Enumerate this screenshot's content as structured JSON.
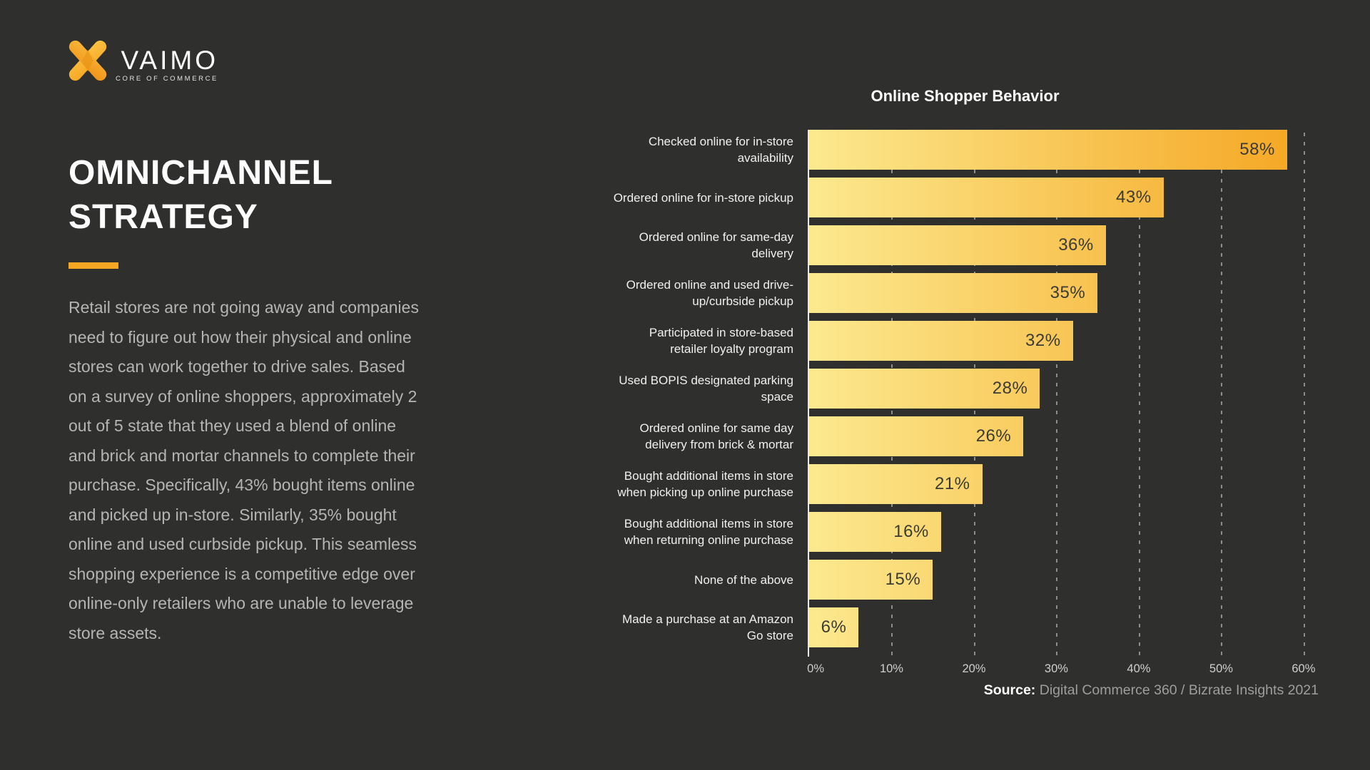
{
  "slide": {
    "background": "#2F2F2D",
    "accent_color": "#F5A623"
  },
  "logo": {
    "brand": "VAIMO",
    "tagline": "CORE OF COMMERCE"
  },
  "left_panel": {
    "heading": "OMNICHANNEL STRATEGY",
    "body": "Retail stores are not going away and companies need to figure out how their physical and online stores can work together to drive sales.  Based on a survey of online shoppers, approximately 2 out of 5 state that they used a blend of online and brick and mortar channels to complete their purchase. Specifically, 43% bought items online and picked up in-store. Similarly, 35% bought online and used curbside pickup. This seamless shopping experience is a competitive edge over online-only retailers who are unable to leverage store assets."
  },
  "chart_data": {
    "type": "bar",
    "orientation": "horizontal",
    "title": "Online Shopper Behavior",
    "categories": [
      "Checked online for in-store availability",
      "Ordered online for in-store pickup",
      "Ordered online for same-day delivery",
      "Ordered online and used drive-up/curbside pickup",
      "Participated in store-based retailer loyalty program",
      "Used BOPIS designated parking space",
      "Ordered online for same day delivery from brick & mortar",
      "Bought additional items in store when picking up online purchase",
      "Bought additional items in store when returning online purchase",
      "None of the above",
      "Made a purchase at an Amazon Go store"
    ],
    "values": [
      58,
      43,
      36,
      35,
      32,
      28,
      26,
      21,
      16,
      15,
      6
    ],
    "value_labels": [
      "58%",
      "43%",
      "36%",
      "35%",
      "32%",
      "28%",
      "26%",
      "21%",
      "16%",
      "15%",
      "6%"
    ],
    "unit": "%",
    "xlabel": "",
    "ylabel": "",
    "xlim": [
      0,
      62
    ],
    "x_ticks": [
      "0%",
      "10%",
      "20%",
      "30%",
      "40%",
      "50%",
      "60%"
    ],
    "x_tick_values": [
      0,
      10,
      20,
      30,
      40,
      50,
      60
    ],
    "gridline_values": [
      10,
      20,
      30,
      40,
      50,
      60
    ],
    "grid": "dashed-vertical",
    "legend": null,
    "bar_gradient_start": "#FCE98F",
    "bar_gradient_end": "#F5A41F",
    "value_label_color": "#3B3B33"
  },
  "source": {
    "label": "Source:",
    "text": " Digital Commerce 360 / Bizrate Insights 2021"
  }
}
